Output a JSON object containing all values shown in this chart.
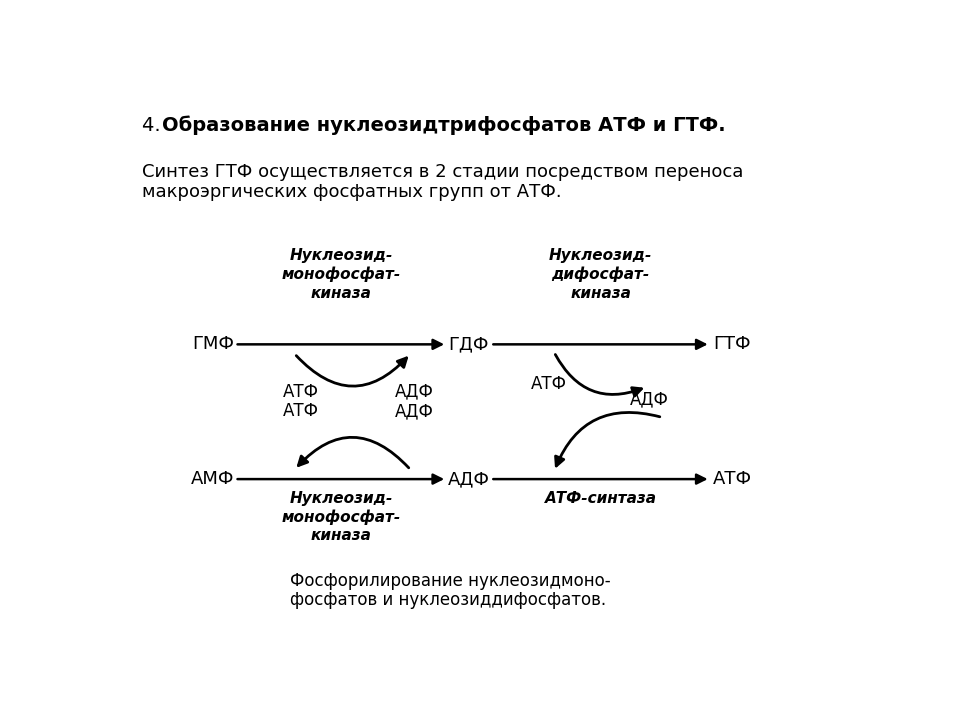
{
  "title": "4. Образование нуклеозидтрифосфатов АТФ и ГТФ.",
  "title_prefix": "4. ",
  "title_bold": "Образование нуклеозидтрифосфатов АТФ и ГТФ.",
  "subtitle_line1": "Синтез ГТФ осуществляется в 2 стадии посредством переноса",
  "subtitle_line2": "макроэргических фосфатных групп от АТФ.",
  "caption_line1": "Фосфорилирование нуклеозидмоно-",
  "caption_line2": "фосфатов и нуклеозиддифосфатов.",
  "enzyme1": "Нуклеозид-\nмонофосфат-\nкиназа",
  "enzyme2": "Нуклеозид-\nдифосфат-\nкиназа",
  "enzyme3": "Нуклеозид-\nмонофосфат-\nкиназа",
  "enzyme4": "АТФ-синтаза",
  "GMF": "ГМФ",
  "GDF": "ГДФ",
  "GTF": "ГТФ",
  "AMF": "АМФ",
  "ADF": "АДФ",
  "ATF": "АТФ",
  "ATF_label": "АТФ",
  "ADF_label": "АДФ",
  "bg_color": "#ffffff",
  "text_color": "#000000"
}
